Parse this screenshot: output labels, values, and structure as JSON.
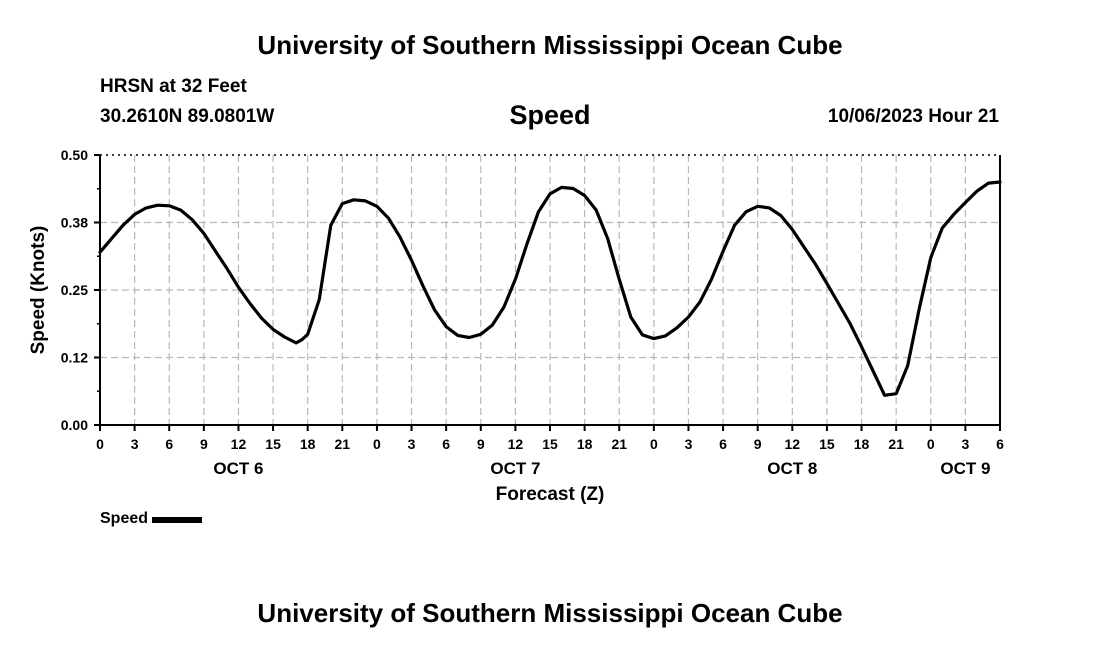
{
  "header": {
    "title": "University of Southern Mississippi Ocean Cube",
    "station": "HRSN at 32 Feet",
    "coords": "30.2610N  89.0801W",
    "subtitle": "Speed",
    "datetime": "10/06/2023 Hour 21"
  },
  "footer": {
    "title": "University of Southern Mississippi Ocean Cube"
  },
  "legend": {
    "label": "Speed"
  },
  "chart_data": {
    "type": "line",
    "title": "Speed",
    "xlabel": "Forecast (Z)",
    "ylabel": "Speed (Knots)",
    "ylim": [
      0,
      0.5
    ],
    "xlim": [
      0,
      78
    ],
    "x_unit": "hours since OCT 6 00Z",
    "grid": true,
    "y_ticks": [
      0.0,
      0.125,
      0.25,
      0.375,
      0.5
    ],
    "y_tick_labels": [
      "0.00",
      "0.12",
      "0.25",
      "0.38",
      "0.50"
    ],
    "x_ticks": [
      0,
      3,
      6,
      9,
      12,
      15,
      18,
      21,
      24,
      27,
      30,
      33,
      36,
      39,
      42,
      45,
      48,
      51,
      54,
      57,
      60,
      63,
      66,
      69,
      72,
      75,
      78
    ],
    "x_tick_labels": [
      "0",
      "3",
      "6",
      "9",
      "12",
      "15",
      "18",
      "21",
      "0",
      "3",
      "6",
      "9",
      "12",
      "15",
      "18",
      "21",
      "0",
      "3",
      "6",
      "9",
      "12",
      "15",
      "18",
      "21",
      "0",
      "3",
      "6"
    ],
    "day_labels": [
      {
        "label": "OCT 6",
        "x": 12
      },
      {
        "label": "OCT 7",
        "x": 36
      },
      {
        "label": "OCT 8",
        "x": 60
      },
      {
        "label": "OCT 9",
        "x": 75
      }
    ],
    "legend_position": "bottom-left",
    "series": [
      {
        "name": "Speed",
        "color": "#000000",
        "x": [
          0,
          1,
          2,
          3,
          4,
          5,
          6,
          7,
          8,
          9,
          10,
          11,
          12,
          13,
          14,
          15,
          16,
          17,
          17.5,
          18,
          19,
          20,
          21,
          22,
          23,
          24,
          25,
          26,
          27,
          28,
          29,
          30,
          31,
          32,
          33,
          34,
          35,
          36,
          37,
          38,
          39,
          40,
          41,
          42,
          43,
          44,
          45,
          46,
          47,
          48,
          49,
          50,
          51,
          52,
          53,
          54,
          55,
          56,
          57,
          58,
          59,
          60,
          61,
          62,
          63,
          64,
          65,
          66,
          67,
          68,
          69,
          70,
          71,
          72,
          73,
          74,
          75,
          76,
          77,
          78
        ],
        "values": [
          0.32,
          0.345,
          0.37,
          0.39,
          0.402,
          0.407,
          0.406,
          0.398,
          0.38,
          0.355,
          0.322,
          0.29,
          0.255,
          0.225,
          0.198,
          0.177,
          0.163,
          0.152,
          0.158,
          0.168,
          0.232,
          0.37,
          0.41,
          0.417,
          0.415,
          0.405,
          0.383,
          0.348,
          0.305,
          0.257,
          0.213,
          0.182,
          0.166,
          0.162,
          0.168,
          0.185,
          0.218,
          0.27,
          0.335,
          0.395,
          0.428,
          0.44,
          0.438,
          0.425,
          0.398,
          0.345,
          0.27,
          0.2,
          0.167,
          0.16,
          0.165,
          0.18,
          0.2,
          0.228,
          0.27,
          0.322,
          0.37,
          0.395,
          0.405,
          0.402,
          0.388,
          0.362,
          0.33,
          0.298,
          0.262,
          0.225,
          0.188,
          0.145,
          0.1,
          0.055,
          0.058,
          0.11,
          0.215,
          0.31,
          0.365,
          0.39,
          0.412,
          0.433,
          0.448,
          0.45
        ]
      }
    ]
  }
}
